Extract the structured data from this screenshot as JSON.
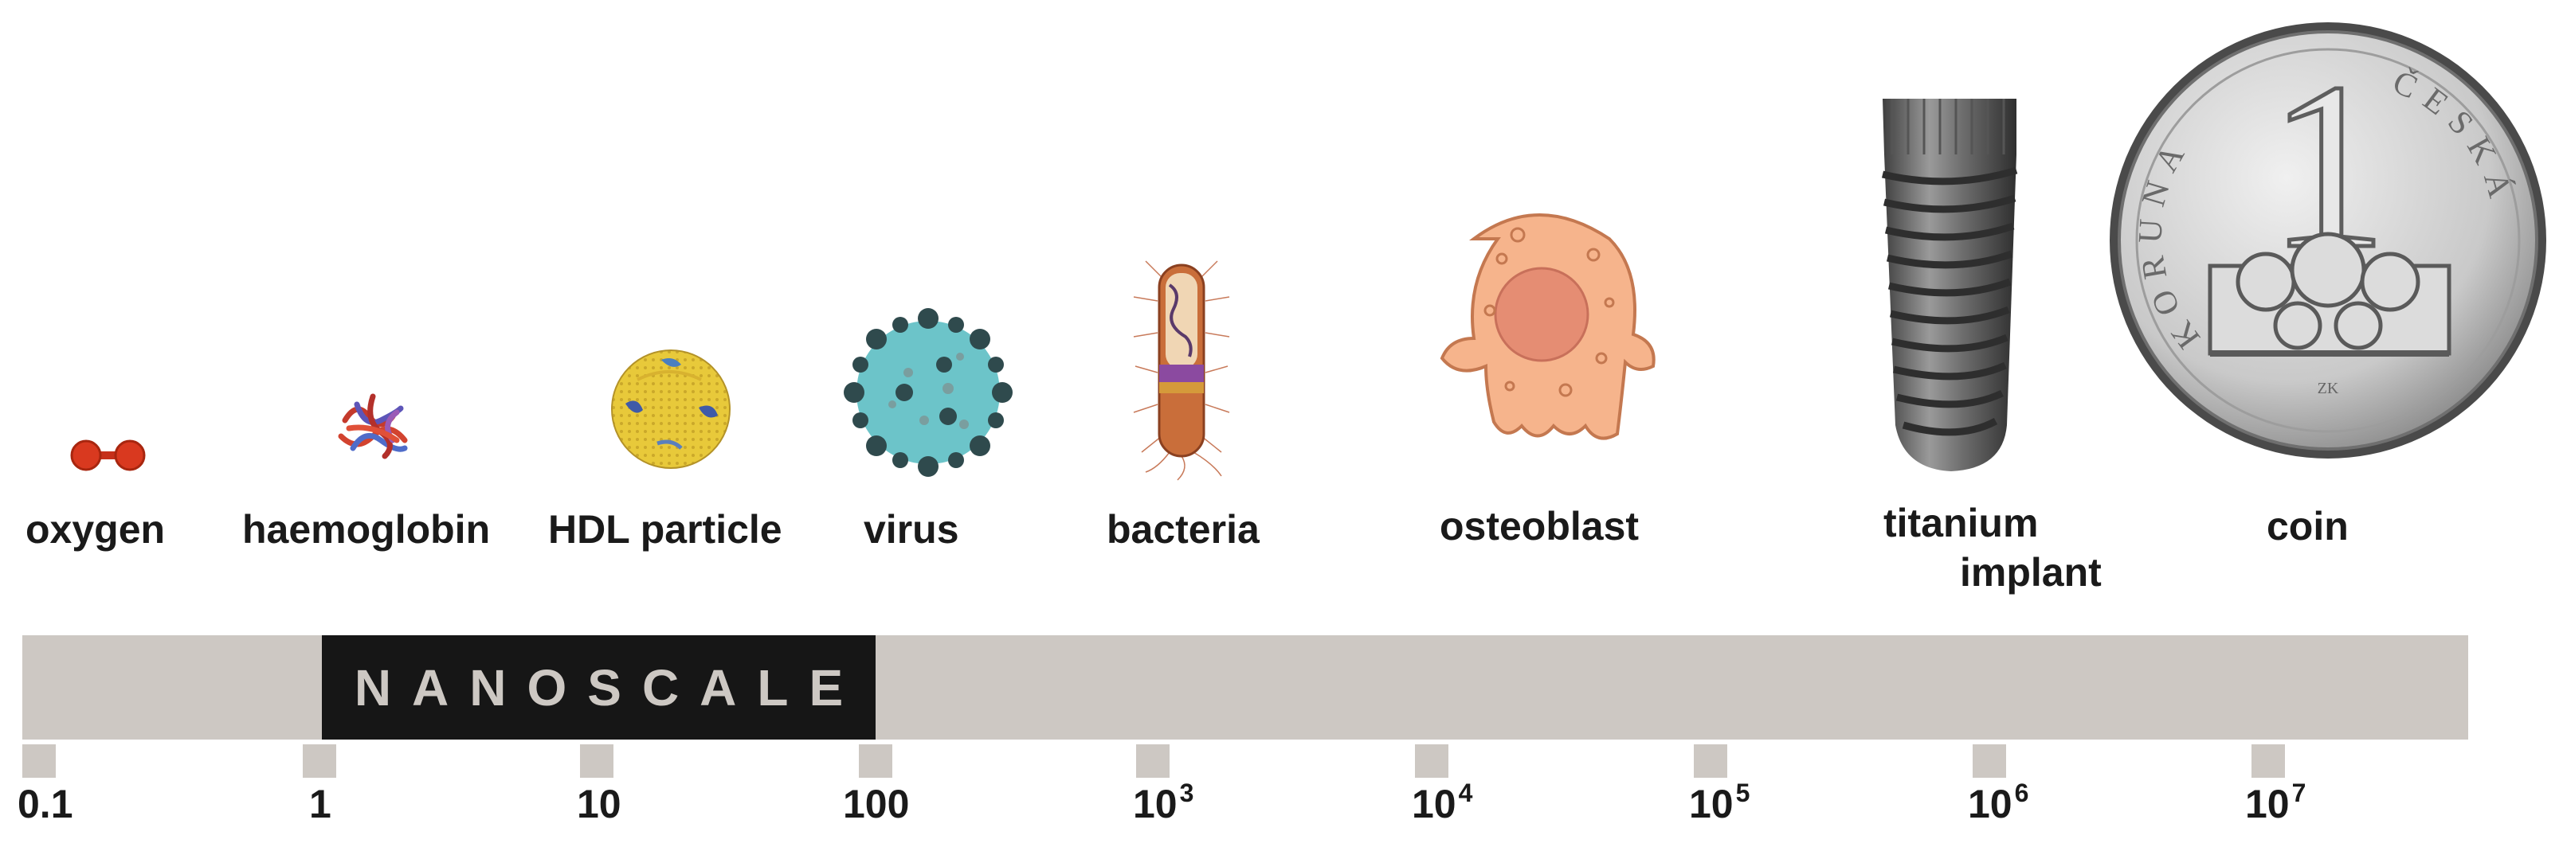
{
  "objects": [
    {
      "id": "oxygen",
      "label": "oxygen",
      "icon": "oxygen-molecule-icon"
    },
    {
      "id": "haemoglobin",
      "label": "haemoglobin",
      "icon": "haemoglobin-protein-icon"
    },
    {
      "id": "hdl",
      "label": "HDL particle",
      "icon": "hdl-particle-icon"
    },
    {
      "id": "virus",
      "label": "virus",
      "icon": "virus-icon"
    },
    {
      "id": "bacteria",
      "label": "bacteria",
      "icon": "bacteria-icon"
    },
    {
      "id": "osteoblast",
      "label": "osteoblast",
      "icon": "osteoblast-cell-icon"
    },
    {
      "id": "implant",
      "label_line1": "titanium",
      "label_line2": "implant",
      "icon": "titanium-implant-icon"
    },
    {
      "id": "coin",
      "label": "coin",
      "icon": "coin-icon",
      "coin_text": {
        "numeral": "1",
        "left": "KORUNA",
        "right": "ČESKÁ",
        "mark": "ZK"
      }
    }
  ],
  "scale": {
    "nanoscale_label": "NANOSCALE",
    "ticks": [
      {
        "base": "0.1",
        "exp": ""
      },
      {
        "base": "1",
        "exp": ""
      },
      {
        "base": "10",
        "exp": ""
      },
      {
        "base": "100",
        "exp": ""
      },
      {
        "base": "10",
        "exp": "3"
      },
      {
        "base": "10",
        "exp": "4"
      },
      {
        "base": "10",
        "exp": "5"
      },
      {
        "base": "10",
        "exp": "6"
      },
      {
        "base": "10",
        "exp": "7"
      }
    ]
  },
  "colors": {
    "bar": "#cdc8c3",
    "nanoscale_box": "#161616",
    "oxygen": "#d9391f",
    "hdl": "#e8c93a",
    "virus": "#6cc4c9",
    "osteoblast": "#f6b48c",
    "implant": "#6d6d6d",
    "coin": "#c9c9c9"
  }
}
